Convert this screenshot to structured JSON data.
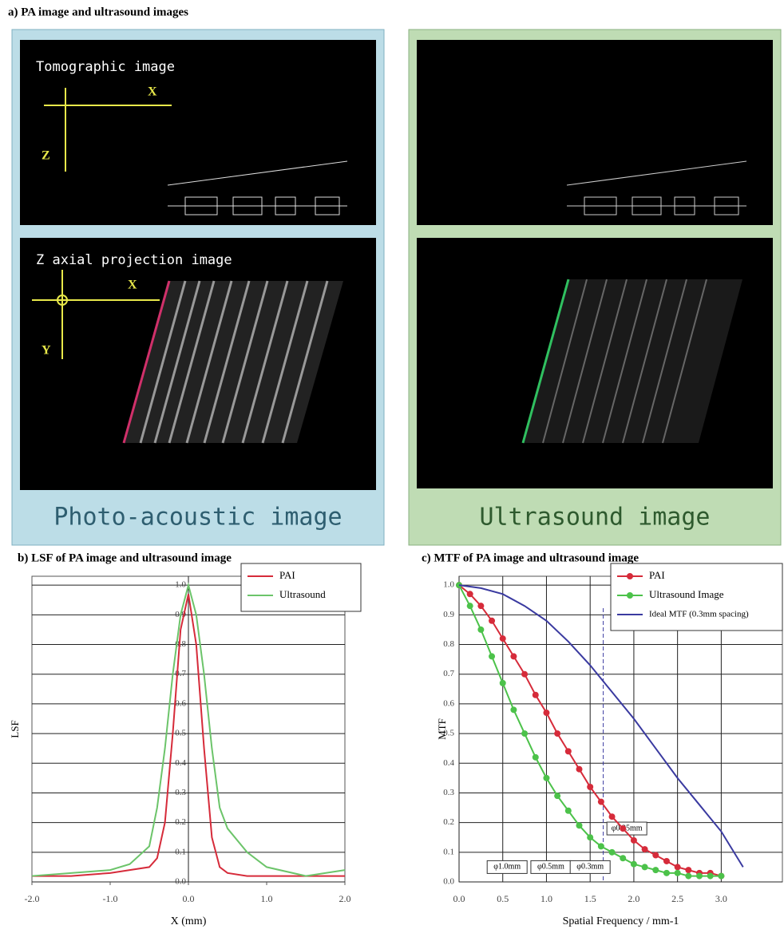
{
  "panel_a": {
    "title": "a) PA image and ultrasound images",
    "pa": {
      "tomo_label": "Tomographic image",
      "tomo_x": "X",
      "tomo_z": "Z",
      "proj_label": "Z axial projection image",
      "proj_x": "X",
      "proj_y": "Y",
      "caption": "Photo-acoustic image"
    },
    "us": {
      "caption": "Ultrasound image"
    }
  },
  "chart_data": [
    {
      "type": "line",
      "title": "b) LSF of PA image and ultrasound image",
      "x_label": "X (mm)",
      "y_label": "LSF",
      "x": [
        -2,
        -1.5,
        -1,
        -0.75,
        -0.5,
        -0.4,
        -0.3,
        -0.2,
        -0.1,
        0,
        0.1,
        0.2,
        0.3,
        0.4,
        0.5,
        0.75,
        1,
        1.5,
        2
      ],
      "series": [
        {
          "name": "PAI",
          "color": "#d62b3a",
          "values": [
            0.02,
            0.02,
            0.03,
            0.04,
            0.05,
            0.08,
            0.2,
            0.5,
            0.85,
            0.97,
            0.8,
            0.45,
            0.15,
            0.05,
            0.03,
            0.02,
            0.02,
            0.02,
            0.02
          ]
        },
        {
          "name": "Ultrasound",
          "color": "#6cc46a",
          "values": [
            0.02,
            0.03,
            0.04,
            0.06,
            0.12,
            0.25,
            0.45,
            0.7,
            0.9,
            1.0,
            0.9,
            0.7,
            0.45,
            0.25,
            0.18,
            0.1,
            0.05,
            0.02,
            0.04
          ]
        }
      ],
      "xlim": [
        -2,
        2
      ],
      "ylim": [
        0,
        1.03
      ],
      "xticks": [
        {
          "value": -2,
          "label": "-2.0"
        },
        {
          "value": -1,
          "label": "-1.0"
        },
        {
          "value": 0,
          "label": "0.0"
        },
        {
          "value": 1,
          "label": "1.0"
        },
        {
          "value": 2,
          "label": "2.0"
        }
      ],
      "yticks": [
        {
          "value": 0,
          "label": "0.0"
        },
        0.1,
        0.2,
        0.3,
        0.4,
        0.5,
        0.6,
        0.7,
        0.8,
        0.9,
        {
          "value": 1,
          "label": "1.0"
        }
      ],
      "grid": true,
      "xgrid": false,
      "legend": "upper right"
    },
    {
      "type": "line",
      "title": "c) MTF of PA image and ultrasound image",
      "x_label": "Spatial Frequency / mm-1",
      "y_label": "MTF",
      "series": [
        {
          "name": "PAI",
          "color": "#d62b3a",
          "marker": true,
          "x": [
            0,
            0.125,
            0.25,
            0.375,
            0.5,
            0.625,
            0.75,
            0.875,
            1,
            1.125,
            1.25,
            1.375,
            1.5,
            1.625,
            1.75,
            1.875,
            2,
            2.125,
            2.25,
            2.375,
            2.5,
            2.625,
            2.75,
            2.875,
            3
          ],
          "values": [
            1.0,
            0.97,
            0.93,
            0.88,
            0.82,
            0.76,
            0.7,
            0.63,
            0.57,
            0.5,
            0.44,
            0.38,
            0.32,
            0.27,
            0.22,
            0.18,
            0.14,
            0.11,
            0.09,
            0.07,
            0.05,
            0.04,
            0.03,
            0.03,
            0.02
          ]
        },
        {
          "name": "Ultrasound Image",
          "color": "#4cc24a",
          "marker": true,
          "x": [
            0,
            0.125,
            0.25,
            0.375,
            0.5,
            0.625,
            0.75,
            0.875,
            1,
            1.125,
            1.25,
            1.375,
            1.5,
            1.625,
            1.75,
            1.875,
            2,
            2.125,
            2.25,
            2.375,
            2.5,
            2.625,
            2.75,
            2.875,
            3
          ],
          "values": [
            1.0,
            0.93,
            0.85,
            0.76,
            0.67,
            0.58,
            0.5,
            0.42,
            0.35,
            0.29,
            0.24,
            0.19,
            0.15,
            0.12,
            0.1,
            0.08,
            0.06,
            0.05,
            0.04,
            0.03,
            0.03,
            0.02,
            0.02,
            0.02,
            0.02
          ]
        },
        {
          "name": "Ideal MTF (0.3mm spacing)",
          "color": "#3a3aa0",
          "marker": false,
          "x": [
            0,
            0.25,
            0.5,
            0.75,
            1,
            1.25,
            1.5,
            1.75,
            2,
            2.25,
            2.5,
            2.75,
            3,
            3.25
          ],
          "values": [
            1.0,
            0.99,
            0.97,
            0.93,
            0.88,
            0.81,
            0.73,
            0.64,
            0.55,
            0.45,
            0.35,
            0.26,
            0.17,
            0.05
          ]
        }
      ],
      "marker_line_x": 1.65,
      "annotations": [
        {
          "text": "φ1.0mm",
          "x": 0.55,
          "y": 0.05
        },
        {
          "text": "φ0.5mm",
          "x": 1.05,
          "y": 0.05
        },
        {
          "text": "φ0.3mm",
          "x": 1.5,
          "y": 0.05
        },
        {
          "text": "φ0.25mm",
          "x": 1.92,
          "y": 0.18
        }
      ],
      "xlim": [
        0,
        3.7
      ],
      "ylim": [
        0,
        1.03
      ],
      "xticks": [
        {
          "value": 0,
          "label": "0.0"
        },
        0.5,
        {
          "value": 1,
          "label": "1.0"
        },
        1.5,
        {
          "value": 2,
          "label": "2.0"
        },
        2.5,
        {
          "value": 3,
          "label": "3.0"
        }
      ],
      "yticks": [
        {
          "value": 0,
          "label": "0.0"
        },
        0.1,
        0.2,
        0.3,
        0.4,
        0.5,
        0.6,
        0.7,
        0.8,
        0.9,
        {
          "value": 1,
          "label": "1.0"
        }
      ],
      "grid": true,
      "xgrid": true,
      "legend": "upper right"
    }
  ]
}
